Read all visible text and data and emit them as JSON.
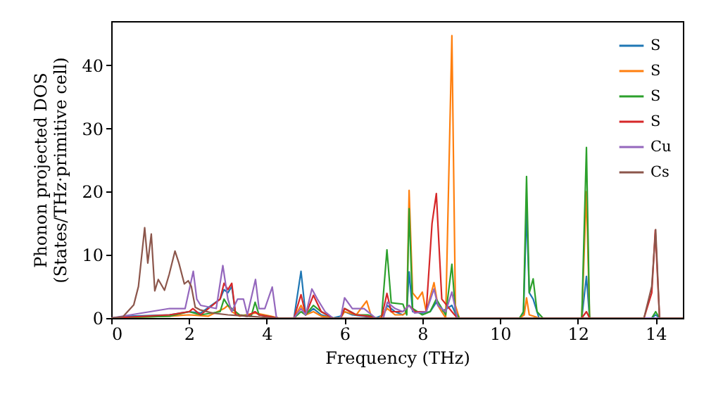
{
  "chart_data": {
    "type": "line",
    "xlabel": "Frequency (THz)",
    "ylabel": "Phonon projected DOS\n(States/THz·primitive cell)",
    "xlim": [
      0,
      14.7
    ],
    "ylim": [
      0,
      47
    ],
    "xticks": [
      0,
      2,
      4,
      6,
      8,
      10,
      12,
      14
    ],
    "yticks": [
      0,
      10,
      20,
      30,
      40
    ],
    "grid": false,
    "legend": "top right",
    "series": [
      {
        "name": "S",
        "color": "#1f77b4",
        "x": [
          0,
          0.5,
          1.5,
          2.0,
          2.3,
          2.8,
          2.9,
          3.0,
          3.1,
          3.2,
          3.5,
          3.7,
          3.8,
          4.3,
          4.7,
          4.88,
          5.0,
          5.2,
          5.4,
          5.7,
          5.9,
          6.0,
          6.2,
          6.5,
          6.8,
          7.0,
          7.1,
          7.3,
          7.5,
          7.6,
          7.66,
          7.75,
          8.0,
          8.2,
          8.36,
          8.5,
          8.76,
          8.9,
          10.5,
          10.6,
          10.68,
          10.75,
          10.85,
          11.0,
          12.1,
          12.22,
          12.3,
          13.9,
          14.0,
          14.1,
          14.7
        ],
        "values": [
          0,
          0.3,
          0.5,
          1,
          0.8,
          3,
          4.5,
          4,
          5,
          0.5,
          0.3,
          1,
          0.5,
          0,
          0,
          7.4,
          0.5,
          1.5,
          0.5,
          0,
          0.3,
          1,
          0.5,
          0.3,
          0,
          0.5,
          2,
          1,
          0.5,
          1,
          7.3,
          1,
          0.8,
          1,
          2.5,
          1,
          2,
          0,
          0,
          0.5,
          17,
          4,
          3,
          0,
          0,
          6.6,
          0,
          0,
          0.5,
          0,
          0
        ]
      },
      {
        "name": "S",
        "color": "#ff7f0e",
        "x": [
          0,
          1.5,
          2.0,
          2.5,
          2.9,
          3.0,
          3.1,
          3.3,
          3.7,
          4.1,
          4.3,
          4.7,
          4.88,
          5.0,
          5.2,
          5.4,
          5.7,
          5.9,
          6.0,
          6.3,
          6.57,
          6.7,
          6.9,
          7.1,
          7.3,
          7.5,
          7.6,
          7.66,
          7.75,
          7.88,
          8.0,
          8.1,
          8.3,
          8.4,
          8.6,
          8.76,
          8.85,
          8.95,
          10.5,
          10.62,
          10.68,
          10.75,
          10.85,
          11.0,
          12.1,
          12.22,
          12.3,
          14.7
        ],
        "values": [
          0,
          0.3,
          0.5,
          0.3,
          1.5,
          2,
          1,
          0.3,
          0.8,
          0.3,
          0,
          0,
          2,
          0.5,
          1,
          0.3,
          0,
          0,
          1,
          0.5,
          2.7,
          0,
          0,
          1.5,
          0.5,
          0.5,
          1,
          20.2,
          4,
          3,
          4.1,
          1,
          5.6,
          2,
          0,
          44.7,
          2,
          0,
          0,
          0.5,
          3.2,
          0.5,
          0.3,
          0,
          0,
          20,
          0,
          0
        ]
      },
      {
        "name": "S",
        "color": "#2ca02c",
        "x": [
          0,
          1.5,
          2.0,
          2.3,
          2.8,
          2.9,
          3.0,
          3.1,
          3.3,
          3.6,
          3.7,
          3.8,
          4.3,
          4.7,
          4.88,
          5.0,
          5.2,
          5.4,
          5.7,
          5.9,
          6.0,
          6.3,
          6.6,
          6.8,
          6.95,
          7.09,
          7.2,
          7.5,
          7.6,
          7.66,
          7.75,
          8.0,
          8.2,
          8.36,
          8.6,
          8.76,
          8.85,
          8.95,
          10.5,
          10.6,
          10.68,
          10.75,
          10.85,
          10.95,
          11.1,
          12.1,
          12.22,
          12.3,
          13.9,
          14.0,
          14.1,
          14.7
        ],
        "values": [
          0,
          0.3,
          1,
          0.5,
          1,
          3,
          2,
          1.5,
          0.5,
          0.3,
          2.5,
          0.5,
          0,
          0,
          1,
          0.5,
          2,
          1,
          0,
          0,
          1.5,
          0.5,
          0.5,
          0,
          0,
          10.8,
          2.4,
          2.2,
          0.5,
          17.3,
          1.5,
          0.5,
          1,
          3,
          0.5,
          8.5,
          1,
          0,
          0,
          1,
          22.4,
          4,
          6.2,
          1,
          0,
          0,
          27,
          0,
          0,
          1,
          0,
          0
        ]
      },
      {
        "name": "S",
        "color": "#d62728",
        "x": [
          0,
          1.5,
          2.0,
          2.1,
          2.3,
          2.8,
          2.9,
          3.0,
          3.1,
          3.2,
          3.5,
          3.7,
          3.8,
          4.3,
          4.7,
          4.88,
          5.0,
          5.2,
          5.4,
          5.7,
          5.9,
          6.0,
          6.3,
          6.6,
          6.8,
          6.95,
          7.09,
          7.2,
          7.5,
          7.66,
          7.8,
          8.1,
          8.25,
          8.36,
          8.5,
          8.76,
          8.9,
          10.5,
          12.1,
          12.22,
          12.3,
          13.7,
          13.9,
          13.99,
          14.1,
          14.7
        ],
        "values": [
          0,
          0.5,
          1,
          1.5,
          0.5,
          3,
          5.5,
          4.5,
          5.5,
          0.5,
          0.3,
          1,
          0.5,
          0,
          0,
          3.7,
          0.5,
          3.6,
          1,
          0,
          0,
          1.5,
          0.5,
          0.3,
          0,
          0,
          3.9,
          1,
          1,
          2,
          1,
          1,
          15,
          19.7,
          3,
          1,
          0,
          0,
          0,
          1,
          0,
          0,
          4,
          13.9,
          0,
          0
        ]
      },
      {
        "name": "Cu",
        "color": "#9467bd",
        "x": [
          0,
          0.5,
          1.0,
          1.5,
          1.9,
          2.11,
          2.2,
          2.3,
          2.7,
          2.87,
          3.0,
          3.1,
          3.25,
          3.4,
          3.5,
          3.71,
          3.8,
          3.95,
          4.14,
          4.25,
          4.7,
          4.88,
          5.0,
          5.16,
          5.3,
          5.5,
          5.7,
          5.9,
          6.0,
          6.2,
          6.5,
          6.8,
          7.0,
          7.1,
          7.3,
          7.5,
          7.66,
          7.8,
          8.1,
          8.3,
          8.4,
          8.6,
          8.76,
          8.9,
          14.7
        ],
        "values": [
          0,
          0.5,
          1,
          1.5,
          1.5,
          7.4,
          3,
          2,
          1.5,
          8.3,
          3,
          1,
          3,
          3,
          0.5,
          6.1,
          1.5,
          1.5,
          4.9,
          0,
          0,
          1.5,
          0.5,
          4.6,
          3,
          1,
          0,
          0,
          3.2,
          1.5,
          1.5,
          0,
          0,
          2.5,
          1.5,
          1,
          2,
          0.8,
          1,
          4.6,
          2,
          1,
          4.1,
          0,
          0
        ]
      },
      {
        "name": "Cs",
        "color": "#8c564b",
        "x": [
          0,
          0.3,
          0.58,
          0.7,
          0.86,
          0.94,
          1.03,
          1.12,
          1.21,
          1.37,
          1.49,
          1.64,
          1.74,
          1.88,
          1.98,
          2.06,
          2.16,
          2.28,
          2.6,
          3.0,
          3.5,
          4.2,
          13.7,
          13.9,
          14.0,
          14.1,
          14.7
        ],
        "values": [
          0,
          0.2,
          2.1,
          5,
          14.3,
          8.7,
          13.3,
          4.3,
          6.1,
          4.4,
          6.9,
          10.6,
          8.7,
          5.4,
          5.9,
          5,
          1.7,
          1.3,
          0.8,
          0.5,
          0.3,
          0,
          0,
          5,
          14,
          0,
          0
        ]
      }
    ]
  }
}
